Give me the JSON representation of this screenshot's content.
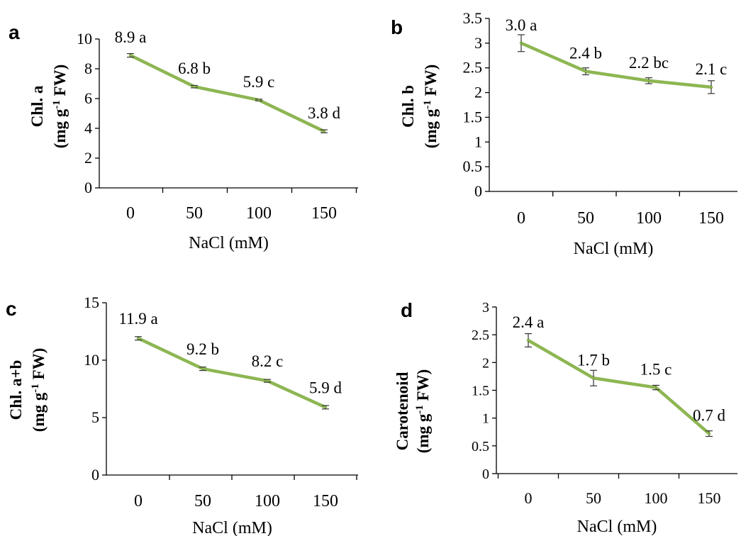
{
  "chart_data": [
    {
      "panel": "a",
      "type": "line",
      "categories": [
        "0",
        "50",
        "100",
        "150"
      ],
      "values": [
        8.9,
        6.8,
        5.9,
        3.8
      ],
      "errors": [
        0.12,
        0.08,
        0.06,
        0.1
      ],
      "data_labels": [
        "8.9 a",
        "6.8 b",
        "5.9 c",
        "3.8 d"
      ],
      "xlabel": "NaCl (mM)",
      "ylabel_line1": "Chl. a",
      "ylabel_line2": "(mg g-1 FW)",
      "yticks": [
        "0",
        "2",
        "4",
        "6",
        "8",
        "10"
      ],
      "ylim": [
        0,
        10
      ],
      "grid": false,
      "color": "#8db652"
    },
    {
      "panel": "b",
      "type": "line",
      "categories": [
        "0",
        "50",
        "100",
        "150"
      ],
      "values": [
        3.0,
        2.43,
        2.24,
        2.11
      ],
      "errors": [
        0.17,
        0.07,
        0.06,
        0.13
      ],
      "data_labels": [
        "3.0 a",
        "2.4 b",
        "2.2 bc",
        "2.1 c"
      ],
      "xlabel": "NaCl (mM)",
      "ylabel_line1": "Chl. b",
      "ylabel_line2": "(mg g-1 FW)",
      "yticks": [
        "0",
        "0.5",
        "1",
        "1.5",
        "2",
        "2.5",
        "3",
        "3.5"
      ],
      "ylim": [
        0,
        3.5
      ],
      "grid": false,
      "color": "#8db652"
    },
    {
      "panel": "c",
      "type": "line",
      "categories": [
        "0",
        "50",
        "100",
        "150"
      ],
      "values": [
        11.9,
        9.25,
        8.2,
        5.9
      ],
      "errors": [
        0.15,
        0.15,
        0.12,
        0.15
      ],
      "data_labels": [
        "11.9 a",
        "9.2 b",
        "8.2 c",
        "5.9 d"
      ],
      "xlabel": "NaCl (mM)",
      "ylabel_line1": "Chl. a+b",
      "ylabel_line2": "(mg g-1 FW)",
      "yticks": [
        "0",
        "5",
        "10",
        "15"
      ],
      "ylim": [
        0,
        15
      ],
      "grid": false,
      "color": "#8db652"
    },
    {
      "panel": "d",
      "type": "line",
      "categories": [
        "0",
        "50",
        "100",
        "150"
      ],
      "values": [
        2.4,
        1.72,
        1.55,
        0.72
      ],
      "errors": [
        0.12,
        0.14,
        0.04,
        0.05
      ],
      "data_labels": [
        "2.4 a",
        "1.7 b",
        "1.5 c",
        "0.7 d"
      ],
      "xlabel": "NaCl (mM)",
      "ylabel_line1": "Carotenoid",
      "ylabel_line2": "(mg g-1 FW)",
      "yticks": [
        "0",
        "0.5",
        "1",
        "1.5",
        "2",
        "2.5",
        "3"
      ],
      "ylim": [
        0,
        3
      ],
      "grid": false,
      "color": "#8db652"
    }
  ]
}
